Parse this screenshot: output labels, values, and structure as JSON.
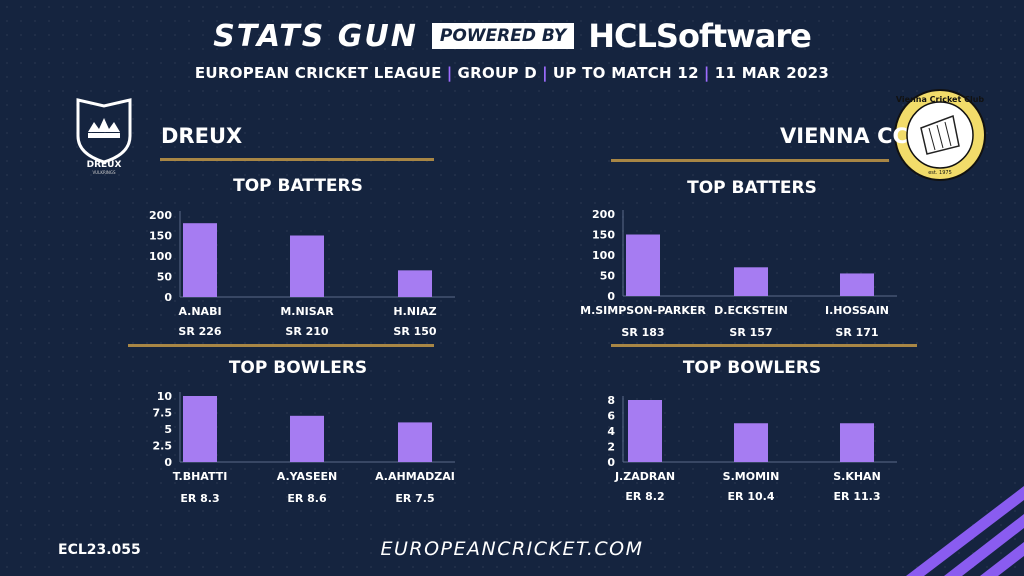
{
  "header": {
    "stats_gun": "STATS GUN",
    "powered_by": "POWERED BY",
    "sponsor": "HCLSoftware",
    "league": "EUROPEAN CRICKET LEAGUE",
    "group": "GROUP  D",
    "match": "UP TO MATCH  12",
    "date": "11 MAR 2023"
  },
  "teams": {
    "left": {
      "name": "DREUX",
      "logo_text": "DREUX",
      "logo_subtext": "VULKRINGS"
    },
    "right": {
      "name": "VIENNA CC",
      "logo_text": "Vienna Cricket Club",
      "logo_subtext": "est. 1975"
    }
  },
  "sections": {
    "batters": "TOP BATTERS",
    "bowlers": "TOP BOWLERS"
  },
  "footer": {
    "code": "ECL23.055",
    "url": "EUROPEANCRICKET.COM"
  },
  "colors": {
    "background": "#15243f",
    "bar": "#a67cf2",
    "gold_line": "#a88645",
    "accent": "#9d6cff"
  },
  "chart_data": [
    {
      "id": "left-batters",
      "type": "bar",
      "team": "DREUX",
      "title": "TOP BATTERS",
      "categories": [
        "A.NABI",
        "M.NISAR",
        "H.NIAZ"
      ],
      "values": [
        180,
        150,
        65
      ],
      "sublabels": [
        "SR 226",
        "SR 210",
        "SR 150"
      ],
      "ylim": [
        0,
        200
      ],
      "yticks": [
        0,
        50,
        100,
        150,
        200
      ]
    },
    {
      "id": "left-bowlers",
      "type": "bar",
      "team": "DREUX",
      "title": "TOP BOWLERS",
      "categories": [
        "T.BHATTI",
        "A.YASEEN",
        "A.AHMADZAI"
      ],
      "values": [
        10,
        7,
        6
      ],
      "sublabels": [
        "ER  8.3",
        "ER  8.6",
        "ER  7.5"
      ],
      "ylim": [
        0,
        10
      ],
      "yticks": [
        0,
        2.5,
        5,
        7.5,
        10
      ]
    },
    {
      "id": "right-batters",
      "type": "bar",
      "team": "VIENNA CC",
      "title": "TOP BATTERS",
      "categories": [
        "M.SIMPSON-PARKER",
        "D.ECKSTEIN",
        "I.HOSSAIN"
      ],
      "values": [
        150,
        70,
        55
      ],
      "sublabels": [
        "SR 183",
        "SR 157",
        "SR 171"
      ],
      "ylim": [
        0,
        200
      ],
      "yticks": [
        0,
        50,
        100,
        150,
        200
      ]
    },
    {
      "id": "right-bowlers",
      "type": "bar",
      "team": "VIENNA CC",
      "title": "TOP BOWLERS",
      "categories": [
        "J.ZADRAN",
        "S.MOMIN",
        "S.KHAN"
      ],
      "values": [
        8,
        5,
        5
      ],
      "sublabels": [
        "ER 8.2",
        "ER 10.4",
        "ER 11.3"
      ],
      "ylim": [
        0,
        8
      ],
      "yticks": [
        0,
        2,
        4,
        6,
        8
      ]
    }
  ]
}
